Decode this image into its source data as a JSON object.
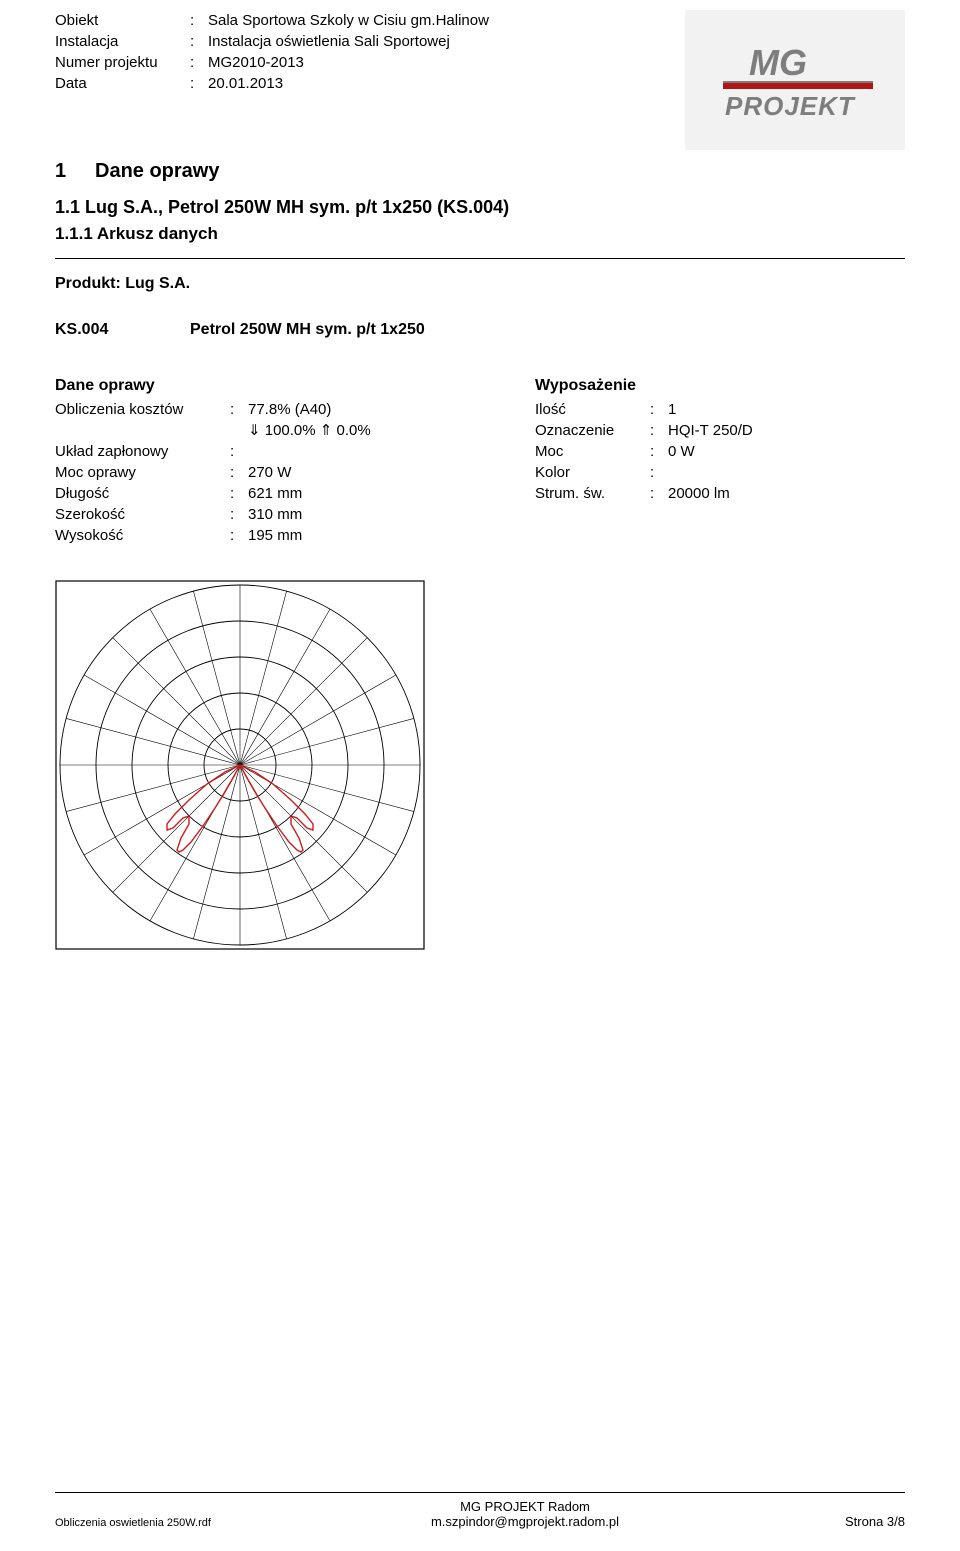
{
  "meta": {
    "obiekt_label": "Obiekt",
    "obiekt_value": "Sala Sportowa Szkoly w Cisiu gm.Halinow",
    "instalacja_label": "Instalacja",
    "instalacja_value": "Instalacja oświetlenia Sali Sportowej",
    "numer_label": "Numer projektu",
    "numer_value": "MG2010-2013",
    "data_label": "Data",
    "data_value": "20.01.2013"
  },
  "logo": {
    "top_text": "MG",
    "bottom_text": "PROJEKT",
    "top_color": "#7e7e7e",
    "accent_color": "#b01518",
    "bg_color": "#f2f2f2"
  },
  "h1": {
    "num": "1",
    "text": "Dane oprawy"
  },
  "h2": "1.1   Lug S.A., Petrol 250W MH  sym.  p/t 1x250 (KS.004)",
  "h3": "1.1.1 Arkusz danych",
  "produkt": "Produkt: Lug S.A.",
  "ks": {
    "key": "KS.004",
    "val": "Petrol 250W MH  sym.  p/t 1x250"
  },
  "dane_oprawy": {
    "heading": "Dane oprawy",
    "rows": [
      {
        "key": "Obliczenia kosztów",
        "colon": ":",
        "val": "77.8% (A40)"
      },
      {
        "key": "",
        "colon": "",
        "val": "⇓ 100.0%  ⇑ 0.0%"
      },
      {
        "key": "Układ zapłonowy",
        "colon": ":",
        "val": ""
      },
      {
        "key": "Moc oprawy",
        "colon": ":",
        "val": "270 W"
      },
      {
        "key": "Długość",
        "colon": ":",
        "val": "621 mm"
      },
      {
        "key": "Szerokość",
        "colon": ":",
        "val": "310 mm"
      },
      {
        "key": "Wysokość",
        "colon": ":",
        "val": "195 mm"
      }
    ]
  },
  "wyposazenie": {
    "heading": "Wyposażenie",
    "rows": [
      {
        "key": "Ilość",
        "val": "1"
      },
      {
        "key": "Oznaczenie",
        "val": "HQI-T 250/D"
      },
      {
        "key": "Moc",
        "val": "0 W"
      },
      {
        "key": "Kolor",
        "val": ""
      },
      {
        "key": "Strum. św.",
        "val": "20000 lm"
      }
    ]
  },
  "polar": {
    "border_color": "#000000",
    "grid_color": "#000000",
    "curve_color": "#d11a1a",
    "radii": [
      36,
      72,
      108,
      144,
      180
    ],
    "size": 370,
    "curve_points": "185,185 178,198 170,212 160,228 148,246 136,262 128,270 124,272 122,270 126,258 134,244 134,236 128,238 118,248 112,250 112,244 120,234 134,220 152,204 170,192 185,185 200,192 218,204 236,220 250,234 258,244 258,250 252,248 242,238 236,236 236,244 244,258 248,270 246,272 242,270 234,262 222,246 210,228 200,212 192,198 185,185",
    "spokes_deg": [
      0,
      15,
      30,
      45,
      60,
      75,
      90,
      105,
      120,
      135,
      150,
      165,
      180,
      195,
      210,
      225,
      240,
      255,
      270,
      285,
      300,
      315,
      330,
      345
    ]
  },
  "footer": {
    "company": "MG PROJEKT Radom",
    "email": "m.szpindor@mgprojekt.radom.pl",
    "file": "Obliczenia oswietlenia 250W.rdf",
    "page": "Strona 3/8"
  }
}
